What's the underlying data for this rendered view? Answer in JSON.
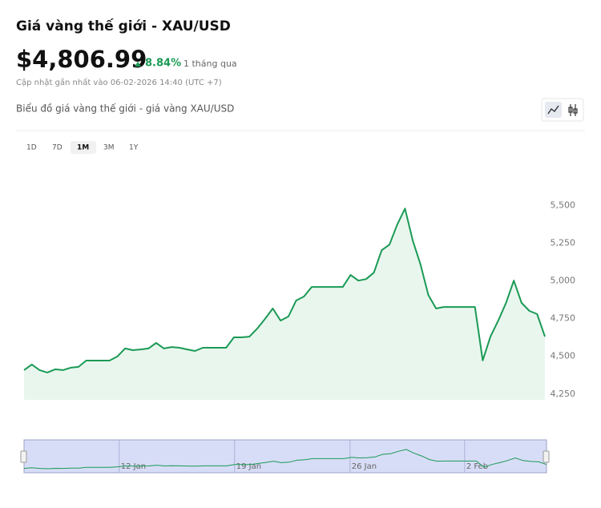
{
  "header": {
    "title": "Giá vàng thế giới - XAU/USD",
    "price": "$4,806.99",
    "change": "8.84%",
    "period": "1 tháng qua",
    "updated": "Cập nhật gần nhất vào 06-02-2026 14:40 (UTC +7)"
  },
  "chart_subtitle": "Biểu đồ giá vàng thế giới - giá vàng XAU/USD",
  "ranges": [
    "1D",
    "7D",
    "1M",
    "3M",
    "1Y"
  ],
  "selected_range": "1M",
  "chart_data": {
    "type": "line",
    "color": "#1a9a55",
    "area_color": "#e9f6ee",
    "values": [
      4409,
      4446,
      4409,
      4393,
      4414,
      4409,
      4425,
      4430,
      4472,
      4472,
      4472,
      4472,
      4499,
      4552,
      4541,
      4546,
      4552,
      4589,
      4552,
      4562,
      4557,
      4546,
      4536,
      4557,
      4557,
      4557,
      4557,
      4626,
      4626,
      4631,
      4684,
      4748,
      4817,
      4737,
      4764,
      4870,
      4896,
      4960,
      4960,
      4960,
      4960,
      4960,
      5039,
      5002,
      5012,
      5055,
      5203,
      5240,
      5373,
      5479,
      5267,
      5108,
      4907,
      4817,
      4827,
      4827,
      4827,
      4827,
      4827,
      4473,
      4632,
      4737,
      4854,
      5002,
      4854,
      4801,
      4780,
      4631
    ],
    "ylim": [
      4212,
      5746
    ],
    "yticks": [
      {
        "value": 4250,
        "label": "4,250"
      },
      {
        "value": 4500,
        "label": "4,500"
      },
      {
        "value": 4750,
        "label": "4,750"
      },
      {
        "value": 5000,
        "label": "5,000"
      },
      {
        "value": 5250,
        "label": "5,250"
      },
      {
        "value": 5500,
        "label": "5,500"
      }
    ],
    "navigator_xticks": [
      {
        "value": 12.2,
        "label": "12 Jan"
      },
      {
        "value": 27,
        "label": "19 Jan"
      },
      {
        "value": 41.8,
        "label": "26 Jan"
      },
      {
        "value": 56.5,
        "label": "2 Feb"
      }
    ]
  }
}
